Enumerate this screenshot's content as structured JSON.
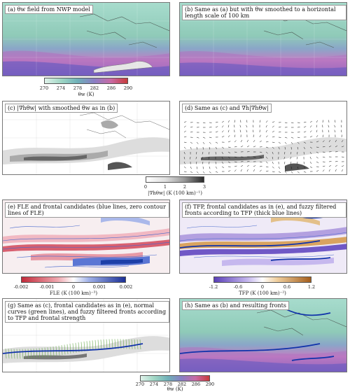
{
  "panels": {
    "a": {
      "label": "(a) θw field from NWP model"
    },
    "b": {
      "label": "(b) Same as (a) but with θw smoothed to a horizontal length scale of 100 km"
    },
    "c": {
      "label": "(c) |∇hθw| with smoothed θw as in (b)"
    },
    "d": {
      "label": "(d) Same as (c) and ∇h|∇hθw|"
    },
    "e": {
      "label": "(e) FLE and frontal candidates (blue lines, zero contour lines of FLE)"
    },
    "f": {
      "label": "(f) TFP, frontal candidates as in (e), and fuzzy filtered fronts according to TFP (thick blue lines)"
    },
    "g": {
      "label": "(g) Same as (c), frontal candidates as in (e), normal curves (green lines), and fuzzy filtered fronts according to TFP and frontal strength"
    },
    "h": {
      "label": "(h) Same as (b) and resulting fronts"
    }
  },
  "colorbars": {
    "theta": {
      "ticks": [
        "270",
        "274",
        "278",
        "282",
        "286",
        "290"
      ],
      "unit": "θw (K)"
    },
    "grad": {
      "ticks": [
        "0",
        "1",
        "2",
        "3"
      ],
      "unit": "|∇hθw| (K (100 km)⁻¹)"
    },
    "fle": {
      "ticks": [
        "-0.002",
        "-0.001",
        "0",
        "0.001",
        "0.002"
      ],
      "unit": "FLE (K (100 km)⁻³)"
    },
    "tfp": {
      "ticks": [
        "-1.2",
        "-0.6",
        "0",
        "0.6",
        "1.2"
      ],
      "unit": "TFP (K (100 km)⁻²)"
    }
  },
  "colors": {
    "theta_cold": "#8fd0bf",
    "theta_mid": "#c47fc2",
    "theta_warm": "#5a58b8",
    "gradient_dark": "#444444",
    "fle_positive": "#1d3fa8",
    "fle_negative": "#d2465a",
    "tfp_positive": "#b8742a",
    "tfp_negative": "#7058c6",
    "front": "#1133aa",
    "normal_curves": "#6aa84f"
  }
}
